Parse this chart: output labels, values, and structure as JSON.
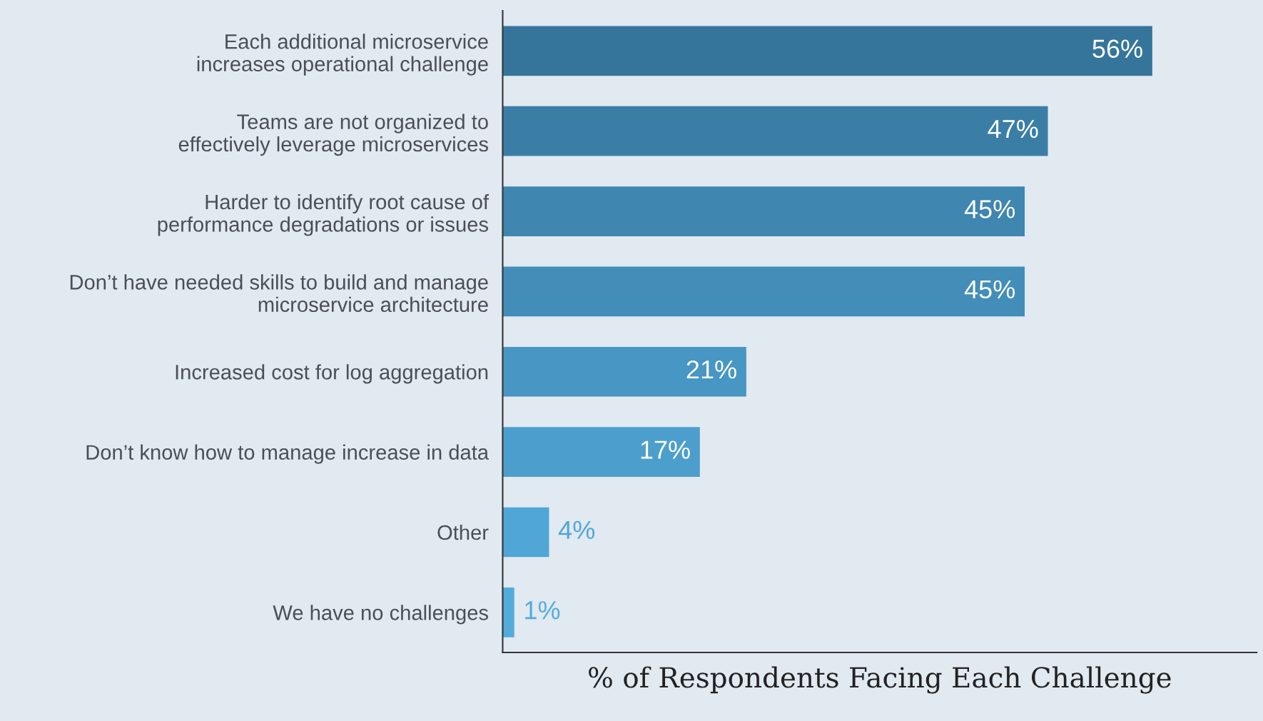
{
  "chart_data": {
    "type": "bar",
    "orientation": "horizontal",
    "xlabel": "% of Respondents Facing Each Challenge",
    "categories": [
      "Each additional microservice\nincreases operational challenge",
      "Teams are not organized to\neffectively leverage microservices",
      "Harder to identify root cause of\nperformance degradations or issues",
      "Don’t have needed skills to build and manage\nmicroservice architecture",
      "Increased cost for log aggregation",
      "Don’t know how to manage increase in data",
      "Other",
      "We have no challenges"
    ],
    "values": [
      56,
      47,
      45,
      45,
      21,
      17,
      4,
      1
    ],
    "value_labels": [
      "56%",
      "47%",
      "45%",
      "45%",
      "21%",
      "17%",
      "4%",
      "1%"
    ],
    "colors": [
      "#36759b",
      "#3a7ea5",
      "#3f86b0",
      "#438eb8",
      "#4896c3",
      "#4c9fcc",
      "#50a6d6",
      "#53acdc"
    ],
    "xlim": [
      0,
      65
    ],
    "grid": false,
    "legend": false,
    "tick_labels": "y"
  }
}
